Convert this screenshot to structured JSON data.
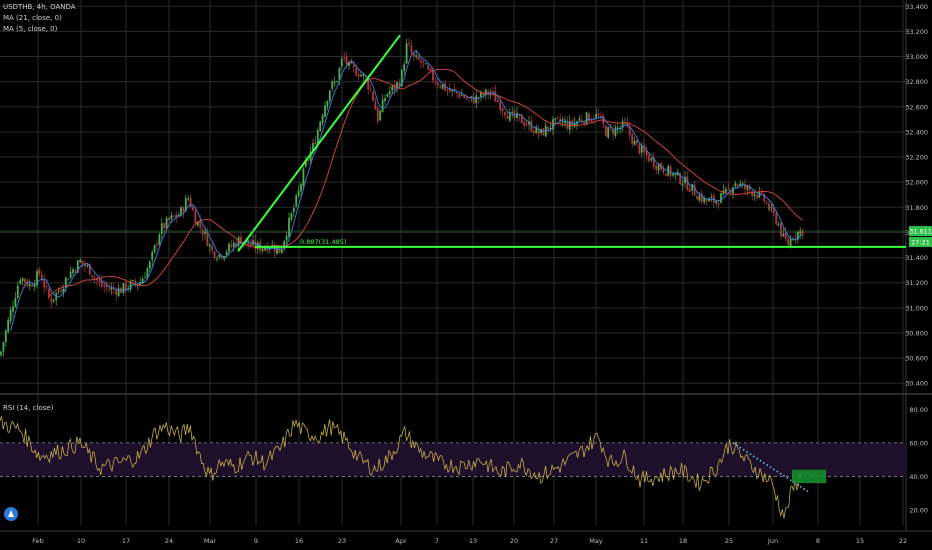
{
  "header": {
    "symbol": "USDTHB, 4h, OANDA",
    "ma1": "MA (21, close, 0)",
    "ma2": "MA (5, close, 0)",
    "rsi": "RSI (14, close)"
  },
  "colors": {
    "background": "#000000",
    "grid": "#2b2b2b",
    "candle_up": "#4caf50",
    "candle_down": "#b23a3a",
    "ma21": "#e0453d",
    "ma5": "#3f7fe0",
    "trendline": "#36ff3a",
    "rsi_line": "#d6c04a",
    "rsi_band": "#1e0f2a",
    "rsi_dotted": "#59c7ff",
    "price_tag": "#2fbf4a",
    "target_box": "#168d2e"
  },
  "chart_data": [
    {
      "type": "candlestick",
      "panel": "price",
      "title": "USDTHB, 4h, OANDA",
      "ylim": [
        30.33,
        33.45
      ],
      "y_ticks": [
        "33.400",
        "33.200",
        "33.000",
        "32.800",
        "32.600",
        "32.400",
        "32.200",
        "32.000",
        "31.800",
        "31.600",
        "31.400",
        "31.200",
        "31.000",
        "30.800",
        "30.600",
        "30.400"
      ],
      "x_ticks": [
        "Feb",
        "10",
        "17",
        "24",
        "Mar",
        "9",
        "16",
        "23",
        "Apr",
        "7",
        "13",
        "20",
        "27",
        "May",
        "11",
        "18",
        "25",
        "Jun",
        "8",
        "15",
        "22"
      ],
      "close_path": [
        {
          "x": 0,
          "y": 30.62
        },
        {
          "x": 10,
          "y": 30.95
        },
        {
          "x": 20,
          "y": 31.25
        },
        {
          "x": 30,
          "y": 31.18
        },
        {
          "x": 40,
          "y": 31.28
        },
        {
          "x": 50,
          "y": 31.05
        },
        {
          "x": 60,
          "y": 31.15
        },
        {
          "x": 70,
          "y": 31.28
        },
        {
          "x": 80,
          "y": 31.37
        },
        {
          "x": 90,
          "y": 31.3
        },
        {
          "x": 100,
          "y": 31.18
        },
        {
          "x": 110,
          "y": 31.15
        },
        {
          "x": 120,
          "y": 31.14
        },
        {
          "x": 130,
          "y": 31.18
        },
        {
          "x": 140,
          "y": 31.2
        },
        {
          "x": 150,
          "y": 31.35
        },
        {
          "x": 160,
          "y": 31.62
        },
        {
          "x": 170,
          "y": 31.7
        },
        {
          "x": 180,
          "y": 31.75
        },
        {
          "x": 188,
          "y": 31.88
        },
        {
          "x": 196,
          "y": 31.7
        },
        {
          "x": 205,
          "y": 31.58
        },
        {
          "x": 212,
          "y": 31.45
        },
        {
          "x": 220,
          "y": 31.42
        },
        {
          "x": 230,
          "y": 31.48
        },
        {
          "x": 240,
          "y": 31.55
        },
        {
          "x": 250,
          "y": 31.5
        },
        {
          "x": 260,
          "y": 31.48
        },
        {
          "x": 270,
          "y": 31.5
        },
        {
          "x": 280,
          "y": 31.45
        },
        {
          "x": 290,
          "y": 31.7
        },
        {
          "x": 298,
          "y": 31.9
        },
        {
          "x": 306,
          "y": 32.15
        },
        {
          "x": 314,
          "y": 32.3
        },
        {
          "x": 322,
          "y": 32.55
        },
        {
          "x": 330,
          "y": 32.75
        },
        {
          "x": 336,
          "y": 32.8
        },
        {
          "x": 343,
          "y": 33.0
        },
        {
          "x": 350,
          "y": 32.9
        },
        {
          "x": 358,
          "y": 32.88
        },
        {
          "x": 366,
          "y": 32.82
        },
        {
          "x": 372,
          "y": 32.7
        },
        {
          "x": 378,
          "y": 32.5
        },
        {
          "x": 386,
          "y": 32.7
        },
        {
          "x": 394,
          "y": 32.75
        },
        {
          "x": 401,
          "y": 32.82
        },
        {
          "x": 407,
          "y": 33.1
        },
        {
          "x": 414,
          "y": 32.98
        },
        {
          "x": 422,
          "y": 32.95
        },
        {
          "x": 430,
          "y": 32.85
        },
        {
          "x": 440,
          "y": 32.78
        },
        {
          "x": 450,
          "y": 32.72
        },
        {
          "x": 460,
          "y": 32.7
        },
        {
          "x": 470,
          "y": 32.65
        },
        {
          "x": 480,
          "y": 32.68
        },
        {
          "x": 490,
          "y": 32.72
        },
        {
          "x": 500,
          "y": 32.62
        },
        {
          "x": 510,
          "y": 32.52
        },
        {
          "x": 520,
          "y": 32.5
        },
        {
          "x": 530,
          "y": 32.45
        },
        {
          "x": 540,
          "y": 32.38
        },
        {
          "x": 550,
          "y": 32.45
        },
        {
          "x": 560,
          "y": 32.48
        },
        {
          "x": 570,
          "y": 32.45
        },
        {
          "x": 580,
          "y": 32.5
        },
        {
          "x": 590,
          "y": 32.52
        },
        {
          "x": 598,
          "y": 32.53
        },
        {
          "x": 606,
          "y": 32.4
        },
        {
          "x": 615,
          "y": 32.42
        },
        {
          "x": 625,
          "y": 32.45
        },
        {
          "x": 635,
          "y": 32.3
        },
        {
          "x": 645,
          "y": 32.22
        },
        {
          "x": 655,
          "y": 32.15
        },
        {
          "x": 665,
          "y": 32.1
        },
        {
          "x": 675,
          "y": 32.05
        },
        {
          "x": 685,
          "y": 32.0
        },
        {
          "x": 695,
          "y": 31.92
        },
        {
          "x": 705,
          "y": 31.85
        },
        {
          "x": 715,
          "y": 31.85
        },
        {
          "x": 725,
          "y": 31.9
        },
        {
          "x": 735,
          "y": 32.0
        },
        {
          "x": 745,
          "y": 31.95
        },
        {
          "x": 755,
          "y": 31.92
        },
        {
          "x": 765,
          "y": 31.85
        },
        {
          "x": 772,
          "y": 31.75
        },
        {
          "x": 778,
          "y": 31.68
        },
        {
          "x": 783,
          "y": 31.55
        },
        {
          "x": 788,
          "y": 31.51
        },
        {
          "x": 793,
          "y": 31.58
        },
        {
          "x": 798,
          "y": 31.6
        },
        {
          "x": 803,
          "y": 31.62
        }
      ],
      "last_price": "31.611",
      "countdown": "27:21",
      "support_level": 31.485,
      "support_label": "0.887(31.485)",
      "trendline": {
        "from": {
          "x": 238,
          "y": 31.45
        },
        "to": {
          "x": 400,
          "y": 33.17
        }
      }
    },
    {
      "type": "line",
      "panel": "rsi",
      "title": "RSI (14, close)",
      "ylim": [
        11,
        88
      ],
      "y_ticks": [
        "80.00",
        "60.00",
        "40.00",
        "20.00"
      ],
      "band": [
        40,
        60
      ],
      "values": [
        {
          "x": 0,
          "y": 72
        },
        {
          "x": 20,
          "y": 68
        },
        {
          "x": 40,
          "y": 52
        },
        {
          "x": 60,
          "y": 55
        },
        {
          "x": 80,
          "y": 60
        },
        {
          "x": 100,
          "y": 45
        },
        {
          "x": 120,
          "y": 48
        },
        {
          "x": 140,
          "y": 52
        },
        {
          "x": 155,
          "y": 66
        },
        {
          "x": 165,
          "y": 70
        },
        {
          "x": 180,
          "y": 64
        },
        {
          "x": 190,
          "y": 70
        },
        {
          "x": 200,
          "y": 52
        },
        {
          "x": 210,
          "y": 40
        },
        {
          "x": 220,
          "y": 48
        },
        {
          "x": 235,
          "y": 46
        },
        {
          "x": 250,
          "y": 52
        },
        {
          "x": 265,
          "y": 48
        },
        {
          "x": 280,
          "y": 56
        },
        {
          "x": 295,
          "y": 72
        },
        {
          "x": 305,
          "y": 66
        },
        {
          "x": 320,
          "y": 64
        },
        {
          "x": 330,
          "y": 70
        },
        {
          "x": 345,
          "y": 62
        },
        {
          "x": 360,
          "y": 50
        },
        {
          "x": 375,
          "y": 44
        },
        {
          "x": 390,
          "y": 52
        },
        {
          "x": 405,
          "y": 66
        },
        {
          "x": 420,
          "y": 55
        },
        {
          "x": 440,
          "y": 48
        },
        {
          "x": 460,
          "y": 46
        },
        {
          "x": 480,
          "y": 50
        },
        {
          "x": 500,
          "y": 42
        },
        {
          "x": 520,
          "y": 48
        },
        {
          "x": 540,
          "y": 40
        },
        {
          "x": 560,
          "y": 46
        },
        {
          "x": 580,
          "y": 54
        },
        {
          "x": 598,
          "y": 64
        },
        {
          "x": 610,
          "y": 48
        },
        {
          "x": 625,
          "y": 52
        },
        {
          "x": 640,
          "y": 38
        },
        {
          "x": 660,
          "y": 40
        },
        {
          "x": 680,
          "y": 44
        },
        {
          "x": 700,
          "y": 36
        },
        {
          "x": 715,
          "y": 44
        },
        {
          "x": 730,
          "y": 60
        },
        {
          "x": 745,
          "y": 50
        },
        {
          "x": 760,
          "y": 42
        },
        {
          "x": 772,
          "y": 36
        },
        {
          "x": 780,
          "y": 22
        },
        {
          "x": 785,
          "y": 16
        },
        {
          "x": 790,
          "y": 28
        },
        {
          "x": 796,
          "y": 36
        },
        {
          "x": 803,
          "y": 40
        }
      ],
      "dotted_trend": {
        "from": {
          "x": 733,
          "y": 60
        },
        "to": {
          "x": 808,
          "y": 31
        }
      },
      "target_zone": {
        "x": [
          792,
          826
        ],
        "y": [
          36,
          44
        ]
      }
    }
  ]
}
